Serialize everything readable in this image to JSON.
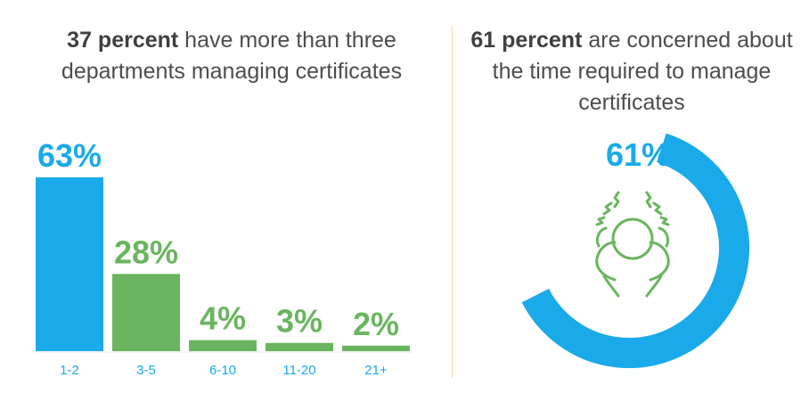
{
  "left": {
    "headline_bold": "37 percent",
    "headline_rest": " have more than three departments managing certificates"
  },
  "right": {
    "headline_bold": "61 percent",
    "headline_rest": " are concerned about the time required to manage certificates"
  },
  "colors": {
    "blue": "#1aaaea",
    "green": "#6ab55f",
    "text": "#4d4d4d"
  },
  "icon": {
    "name": "stressed-person-icon"
  },
  "chart_data": [
    {
      "type": "bar",
      "categories": [
        "1-2",
        "3-5",
        "6-10",
        "11-20",
        "21+"
      ],
      "values": [
        63,
        28,
        4,
        3,
        2
      ],
      "value_labels": [
        "63%",
        "28%",
        "4%",
        "3%",
        "2%"
      ],
      "bar_colors": [
        "#1aaaea",
        "#6ab55f",
        "#6ab55f",
        "#6ab55f",
        "#6ab55f"
      ],
      "ylim": [
        0,
        63
      ],
      "grid": false
    },
    {
      "type": "pie",
      "style": "donut-arc",
      "value": 61,
      "value_label": "61%",
      "color": "#1aaaea"
    }
  ]
}
